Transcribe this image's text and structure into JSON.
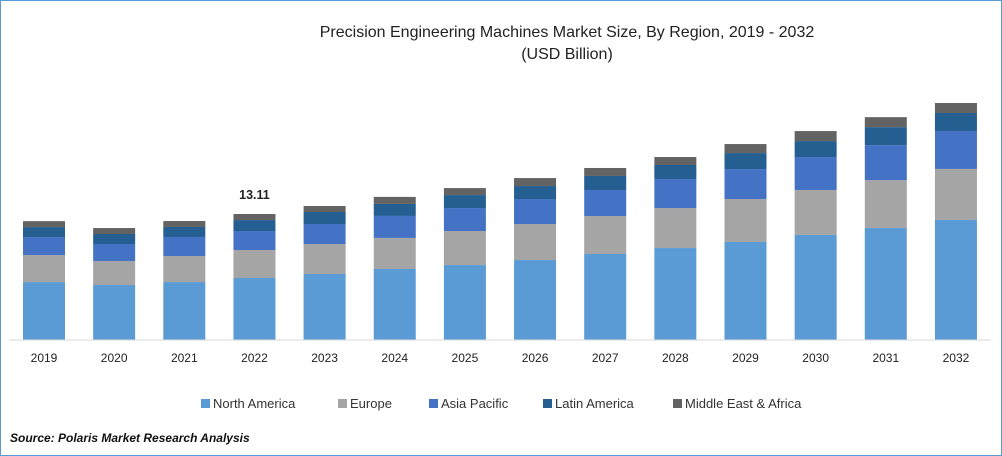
{
  "chart_data": {
    "type": "bar",
    "stacked": true,
    "title": "Precision Engineering Machines Market Size, By Region, 2019 - 2032",
    "subtitle": "(USD Billion)",
    "xlabel": "",
    "ylabel": "",
    "grid": false,
    "legend_position": "bottom",
    "categories": [
      "2019",
      "2020",
      "2021",
      "2022",
      "2023",
      "2024",
      "2025",
      "2026",
      "2027",
      "2028",
      "2029",
      "2030",
      "2031",
      "2032"
    ],
    "series": [
      {
        "name": "North America",
        "color": "#5b9bd5",
        "values": [
          6.03,
          5.72,
          6.03,
          6.45,
          6.87,
          7.39,
          7.8,
          8.32,
          8.95,
          9.57,
          10.2,
          10.93,
          11.65,
          12.49
        ]
      },
      {
        "name": "Europe",
        "color": "#a5a5a5",
        "values": [
          2.81,
          2.5,
          2.71,
          2.91,
          3.12,
          3.23,
          3.54,
          3.75,
          3.95,
          4.16,
          4.47,
          4.68,
          4.99,
          5.31
        ]
      },
      {
        "name": "Asia Pacific",
        "color": "#4472c4",
        "values": [
          1.87,
          1.77,
          1.98,
          1.98,
          2.08,
          2.29,
          2.39,
          2.6,
          2.71,
          3.02,
          3.12,
          3.43,
          3.64,
          3.95
        ]
      },
      {
        "name": "Latin America",
        "color": "#255e91",
        "values": [
          1.04,
          1.04,
          1.04,
          1.14,
          1.25,
          1.25,
          1.35,
          1.35,
          1.46,
          1.46,
          1.66,
          1.66,
          1.87,
          1.87
        ]
      },
      {
        "name": "Middle East & Africa",
        "color": "#636363",
        "values": [
          0.62,
          0.62,
          0.62,
          0.63,
          0.62,
          0.73,
          0.73,
          0.83,
          0.83,
          0.83,
          0.94,
          1.04,
          1.04,
          1.04
        ]
      }
    ],
    "annotations": [
      {
        "category": "2022",
        "text": "13.11"
      }
    ]
  },
  "source": "Source: Polaris Market Research Analysis"
}
